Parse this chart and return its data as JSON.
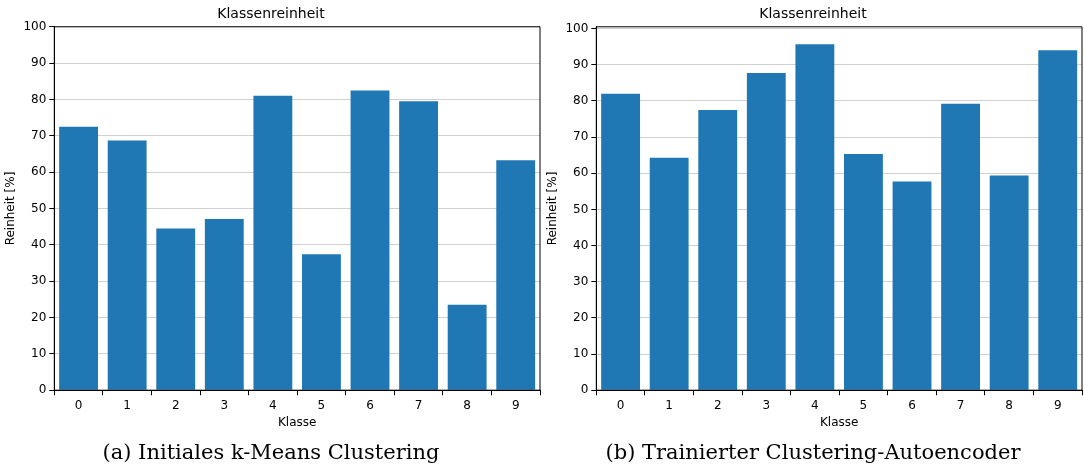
{
  "chart_data": [
    {
      "type": "bar",
      "title": "Klassenreinheit",
      "xlabel": "Klasse",
      "ylabel": "Reinheit [%]",
      "categories": [
        "0",
        "1",
        "2",
        "3",
        "4",
        "5",
        "6",
        "7",
        "8",
        "9"
      ],
      "values": [
        72.5,
        68.7,
        44.5,
        47.1,
        81.0,
        37.4,
        82.5,
        79.5,
        23.5,
        63.3
      ],
      "color": "#1f77b4",
      "ylim": [
        0,
        100
      ],
      "yticks": [
        0,
        10,
        20,
        30,
        40,
        50,
        60,
        70,
        80,
        90,
        100
      ],
      "grid": "y",
      "annotations": [
        "(a) Initiales k-Means Clustering"
      ]
    },
    {
      "type": "bar",
      "title": "Klassenreinheit",
      "xlabel": "Klasse",
      "ylabel": "Reinheit [%]",
      "categories": [
        "0",
        "1",
        "2",
        "3",
        "4",
        "5",
        "6",
        "7",
        "8",
        "9"
      ],
      "values": [
        82.0,
        64.3,
        77.5,
        87.7,
        95.7,
        65.3,
        57.7,
        79.2,
        59.4,
        94.0
      ],
      "color": "#1f77b4",
      "ylim": [
        0,
        100.5
      ],
      "yticks": [
        0,
        10,
        20,
        30,
        40,
        50,
        60,
        70,
        80,
        90,
        100
      ],
      "grid": "y",
      "annotations": [
        "(b) Trainierter Clustering-Autoencoder"
      ]
    }
  ]
}
